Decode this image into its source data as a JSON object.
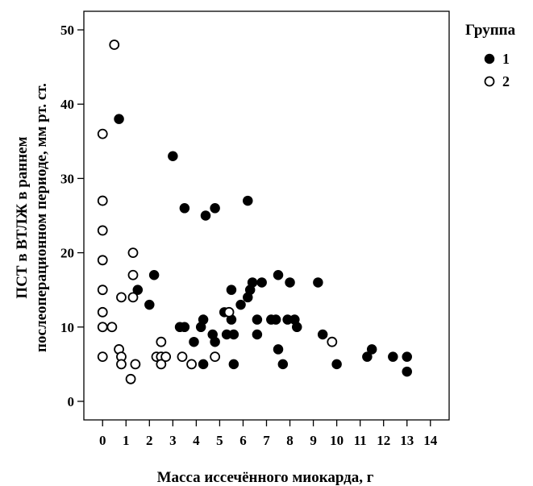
{
  "chart_data": {
    "type": "scatter",
    "xlabel": "Масса иссечённого миокарда, г",
    "ylabel_lines": [
      "ПСТ в ВТЛЖ в раннем",
      "послеоперационном периоде, мм рт. ст."
    ],
    "xlim": [
      -0.8,
      14.8
    ],
    "ylim": [
      -2.5,
      52.5
    ],
    "x_ticks": [
      0,
      1,
      2,
      3,
      4,
      5,
      6,
      7,
      8,
      9,
      10,
      11,
      12,
      13,
      14
    ],
    "y_ticks": [
      0,
      10,
      20,
      30,
      40,
      50
    ],
    "grid": false,
    "legend": {
      "title": "Группа",
      "position": "right-top"
    },
    "series": [
      {
        "name": "1",
        "marker": "filled-circle",
        "color": "#000000",
        "points": [
          [
            0.7,
            38
          ],
          [
            3.0,
            33
          ],
          [
            3.5,
            26
          ],
          [
            4.4,
            25
          ],
          [
            4.8,
            26
          ],
          [
            6.2,
            27
          ],
          [
            1.5,
            15
          ],
          [
            2.0,
            13
          ],
          [
            2.2,
            17
          ],
          [
            3.3,
            10
          ],
          [
            3.5,
            10
          ],
          [
            3.9,
            8
          ],
          [
            4.2,
            10
          ],
          [
            4.3,
            11
          ],
          [
            4.3,
            5
          ],
          [
            4.7,
            9
          ],
          [
            4.8,
            8
          ],
          [
            5.2,
            12
          ],
          [
            5.3,
            9
          ],
          [
            5.5,
            15
          ],
          [
            5.5,
            11
          ],
          [
            5.6,
            5
          ],
          [
            5.6,
            9
          ],
          [
            5.9,
            13
          ],
          [
            6.2,
            14
          ],
          [
            6.3,
            15
          ],
          [
            6.4,
            16
          ],
          [
            6.6,
            11
          ],
          [
            6.6,
            9
          ],
          [
            6.8,
            16
          ],
          [
            7.2,
            11
          ],
          [
            7.4,
            11
          ],
          [
            7.5,
            7
          ],
          [
            7.5,
            17
          ],
          [
            7.7,
            5
          ],
          [
            7.9,
            11
          ],
          [
            8.0,
            16
          ],
          [
            8.2,
            11
          ],
          [
            8.3,
            10
          ],
          [
            9.2,
            16
          ],
          [
            9.4,
            9
          ],
          [
            10.0,
            5
          ],
          [
            11.3,
            6
          ],
          [
            11.5,
            7
          ],
          [
            12.4,
            6
          ],
          [
            13.0,
            6
          ],
          [
            13.0,
            4
          ]
        ]
      },
      {
        "name": "2",
        "marker": "open-circle",
        "color": "#000000",
        "points": [
          [
            0.5,
            48
          ],
          [
            0.0,
            36
          ],
          [
            0.0,
            27
          ],
          [
            0.0,
            23
          ],
          [
            0.0,
            19
          ],
          [
            0.0,
            15
          ],
          [
            0.0,
            12
          ],
          [
            0.0,
            10
          ],
          [
            0.0,
            6
          ],
          [
            0.4,
            10
          ],
          [
            0.7,
            7
          ],
          [
            0.8,
            6
          ],
          [
            0.8,
            5
          ],
          [
            0.8,
            14
          ],
          [
            1.2,
            3
          ],
          [
            1.3,
            20
          ],
          [
            1.3,
            17
          ],
          [
            1.3,
            14
          ],
          [
            1.4,
            5
          ],
          [
            2.3,
            6
          ],
          [
            2.5,
            8
          ],
          [
            2.5,
            6
          ],
          [
            2.5,
            5
          ],
          [
            2.7,
            6
          ],
          [
            3.4,
            6
          ],
          [
            3.8,
            5
          ],
          [
            4.8,
            6
          ],
          [
            5.4,
            12
          ],
          [
            9.8,
            8
          ]
        ]
      }
    ]
  }
}
